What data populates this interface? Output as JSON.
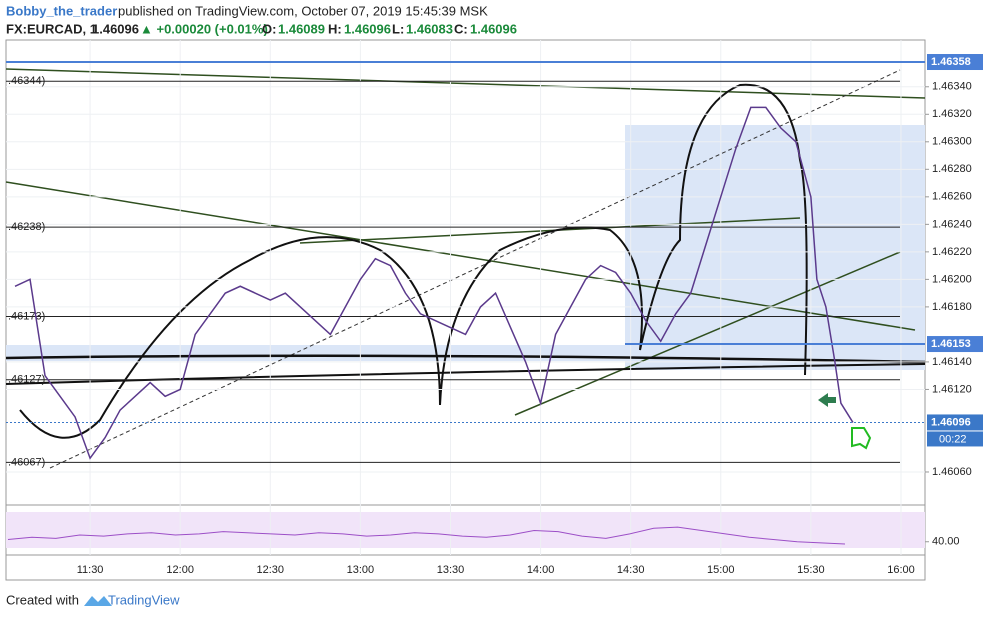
{
  "header": {
    "author": "Bobby_the_trader",
    "published": "published on TradingView.com, October 07, 2019 15:45:39 MSK"
  },
  "symbol_line": {
    "symbol": "FX:EURCAD, 1",
    "last": "1.46096",
    "change": "▲ +0.00020 (+0.01%)",
    "o_label": "O:",
    "o": "1.46089",
    "h_label": "H:",
    "h": "1.46096",
    "l_label": "L:",
    "l": "1.46083",
    "c_label": "C:",
    "c": "1.46096"
  },
  "footer": {
    "created": "Created with",
    "brand": "TradingView"
  },
  "chart_data": {
    "type": "line",
    "x": [
      "11:05",
      "11:10",
      "11:15",
      "11:20",
      "11:25",
      "11:30",
      "11:35",
      "11:40",
      "11:45",
      "11:50",
      "11:55",
      "12:00",
      "12:05",
      "12:10",
      "12:15",
      "12:20",
      "12:25",
      "12:30",
      "12:35",
      "12:40",
      "12:45",
      "12:50",
      "12:55",
      "13:00",
      "13:05",
      "13:10",
      "13:15",
      "13:20",
      "13:25",
      "13:30",
      "13:35",
      "13:40",
      "13:45",
      "13:50",
      "13:55",
      "14:00",
      "14:05",
      "14:10",
      "14:15",
      "14:20",
      "14:25",
      "14:30",
      "14:35",
      "14:40",
      "14:45",
      "14:50",
      "14:55",
      "15:00",
      "15:05",
      "15:10",
      "15:15",
      "15:20",
      "15:25",
      "15:30",
      "15:32",
      "15:35",
      "15:38",
      "15:40",
      "15:44"
    ],
    "series": [
      {
        "color": "#5b3a8c",
        "values": [
          1.46195,
          1.462,
          1.4613,
          1.46115,
          1.461,
          1.4607,
          1.46085,
          1.46105,
          1.46115,
          1.46125,
          1.46115,
          1.4612,
          1.4616,
          1.46175,
          1.4619,
          1.46195,
          1.4619,
          1.46185,
          1.4619,
          1.4618,
          1.4617,
          1.4616,
          1.4618,
          1.462,
          1.46215,
          1.4621,
          1.4619,
          1.46175,
          1.4617,
          1.46165,
          1.4616,
          1.4618,
          1.4619,
          1.46165,
          1.4614,
          1.4611,
          1.4616,
          1.4618,
          1.462,
          1.4621,
          1.46205,
          1.4619,
          1.4617,
          1.46155,
          1.46175,
          1.4619,
          1.46225,
          1.4626,
          1.46295,
          1.46325,
          1.46325,
          1.4631,
          1.463,
          1.4626,
          1.462,
          1.4618,
          1.4614,
          1.4611,
          1.46096
        ]
      }
    ],
    "ylim": [
      1.46036,
      1.46374
    ],
    "yticks": [
      {
        "value": 1.4606,
        "label": "1.46060"
      },
      {
        "value": 1.4612,
        "label": "1.46120"
      },
      {
        "value": 1.4614,
        "label": "1.46140"
      },
      {
        "value": 1.4618,
        "label": "1.46180"
      },
      {
        "value": 1.462,
        "label": "1.46200"
      },
      {
        "value": 1.4622,
        "label": "1.46220"
      },
      {
        "value": 1.4624,
        "label": "1.46240"
      },
      {
        "value": 1.4626,
        "label": "1.46260"
      },
      {
        "value": 1.4628,
        "label": "1.46280"
      },
      {
        "value": 1.463,
        "label": "1.46300"
      },
      {
        "value": 1.4632,
        "label": "1.46320"
      },
      {
        "value": 1.4634,
        "label": "1.46340"
      }
    ],
    "xlim": [
      "11:02",
      "16:08"
    ],
    "xticks": [
      "11:30",
      "12:00",
      "12:30",
      "13:00",
      "13:30",
      "14:00",
      "14:30",
      "15:00",
      "15:30",
      "16:00"
    ],
    "levels": [
      {
        "value": 1.46344,
        "label": ".46344)"
      },
      {
        "value": 1.46238,
        "label": ".46238)"
      },
      {
        "value": 1.46173,
        "label": ".46173)"
      },
      {
        "value": 1.46127,
        "label": ".46127)"
      },
      {
        "value": 1.46067,
        "label": ".46067)"
      }
    ],
    "axis_marks": [
      {
        "value": 1.46358,
        "label": "1.46358",
        "color": "#4a7fd6"
      },
      {
        "value": 1.46153,
        "label": "1.46153",
        "color": "#4a7fd6"
      },
      {
        "value": 1.46096,
        "label": "1.46096",
        "color": "#3b78c8"
      }
    ],
    "countdown": "00:22",
    "rsi": {
      "values": [
        42,
        44,
        43,
        46,
        45,
        47,
        48,
        46,
        47,
        49,
        48,
        47,
        46,
        48,
        47,
        45,
        46,
        48,
        47,
        45,
        44,
        46,
        50,
        49,
        45,
        43,
        47,
        52,
        53,
        50,
        47,
        44,
        42,
        40,
        39,
        38
      ],
      "color": "#9c4fc7",
      "ticks": [
        {
          "value": 40,
          "label": "40.00"
        }
      ],
      "lim": [
        30,
        70
      ]
    }
  }
}
